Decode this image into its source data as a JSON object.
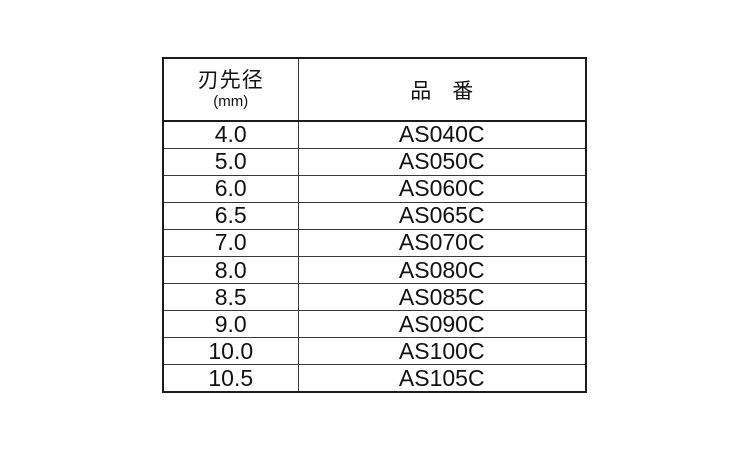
{
  "colors": {
    "background": "#ffffff",
    "border_outer": "#1c1c1c",
    "border_inner": "#3a3a3a",
    "text": "#111111"
  },
  "table": {
    "header": {
      "diameter_label": "刃先径",
      "diameter_unit": "(mm)",
      "part_number_label": "品　番"
    },
    "rows": [
      {
        "diameter": "4.0",
        "part_number": "AS040C"
      },
      {
        "diameter": "5.0",
        "part_number": "AS050C"
      },
      {
        "diameter": "6.0",
        "part_number": "AS060C"
      },
      {
        "diameter": "6.5",
        "part_number": "AS065C"
      },
      {
        "diameter": "7.0",
        "part_number": "AS070C"
      },
      {
        "diameter": "8.0",
        "part_number": "AS080C"
      },
      {
        "diameter": "8.5",
        "part_number": "AS085C"
      },
      {
        "diameter": "9.0",
        "part_number": "AS090C"
      },
      {
        "diameter": "10.0",
        "part_number": "AS100C"
      },
      {
        "diameter": "10.5",
        "part_number": "AS105C"
      }
    ]
  },
  "chart_data": {
    "type": "table",
    "columns": [
      "刃先径(mm)",
      "品番"
    ],
    "rows": [
      [
        "4.0",
        "AS040C"
      ],
      [
        "5.0",
        "AS050C"
      ],
      [
        "6.0",
        "AS060C"
      ],
      [
        "6.5",
        "AS065C"
      ],
      [
        "7.0",
        "AS070C"
      ],
      [
        "8.0",
        "AS080C"
      ],
      [
        "8.5",
        "AS085C"
      ],
      [
        "9.0",
        "AS090C"
      ],
      [
        "10.0",
        "AS100C"
      ],
      [
        "10.5",
        "AS105C"
      ]
    ]
  }
}
